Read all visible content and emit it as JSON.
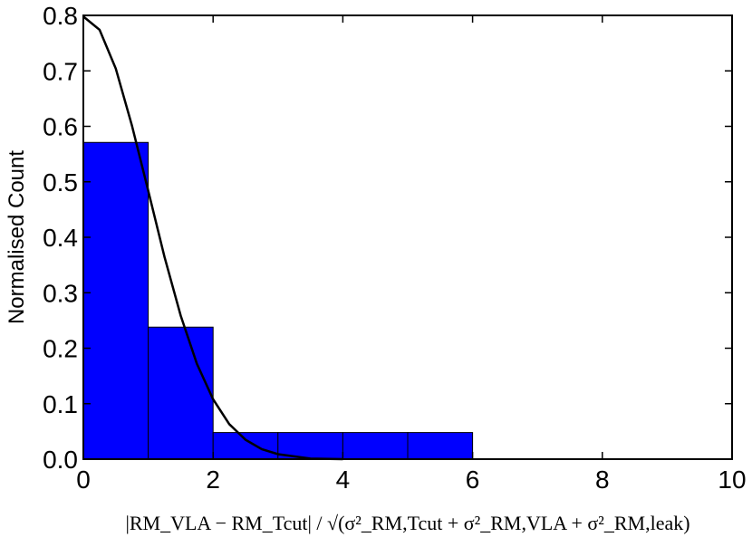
{
  "chart_data": {
    "type": "histogram",
    "x_label": "|RM_VLA − RM_Tcut| / √(σ²_RM,Tcut + σ²_RM,VLA + σ²_RM,leak)",
    "y_label": "Normalised Count",
    "bins": [
      0,
      1,
      2,
      3,
      4,
      5,
      6
    ],
    "counts": [
      0.571,
      0.238,
      0.048,
      0.048,
      0.048,
      0.048
    ],
    "color": "#0000ff",
    "curve": {
      "color": "#000000",
      "x": [
        0,
        0.25,
        0.5,
        0.75,
        1,
        1.25,
        1.5,
        1.75,
        2,
        2.25,
        2.5,
        2.75,
        3,
        3.5,
        4
      ],
      "y": [
        0.798,
        0.774,
        0.704,
        0.601,
        0.484,
        0.365,
        0.259,
        0.172,
        0.108,
        0.063,
        0.035,
        0.018,
        0.009,
        0.001,
        0
      ]
    },
    "xlim": [
      0,
      10
    ],
    "xticks": [
      0,
      2,
      4,
      6,
      8,
      10
    ],
    "ylim": [
      0,
      0.8
    ],
    "yticks": [
      {
        "value": 0,
        "label": "0.0"
      },
      0.1,
      0.2,
      0.3,
      0.4,
      0.5,
      0.6,
      0.7,
      0.8
    ]
  }
}
